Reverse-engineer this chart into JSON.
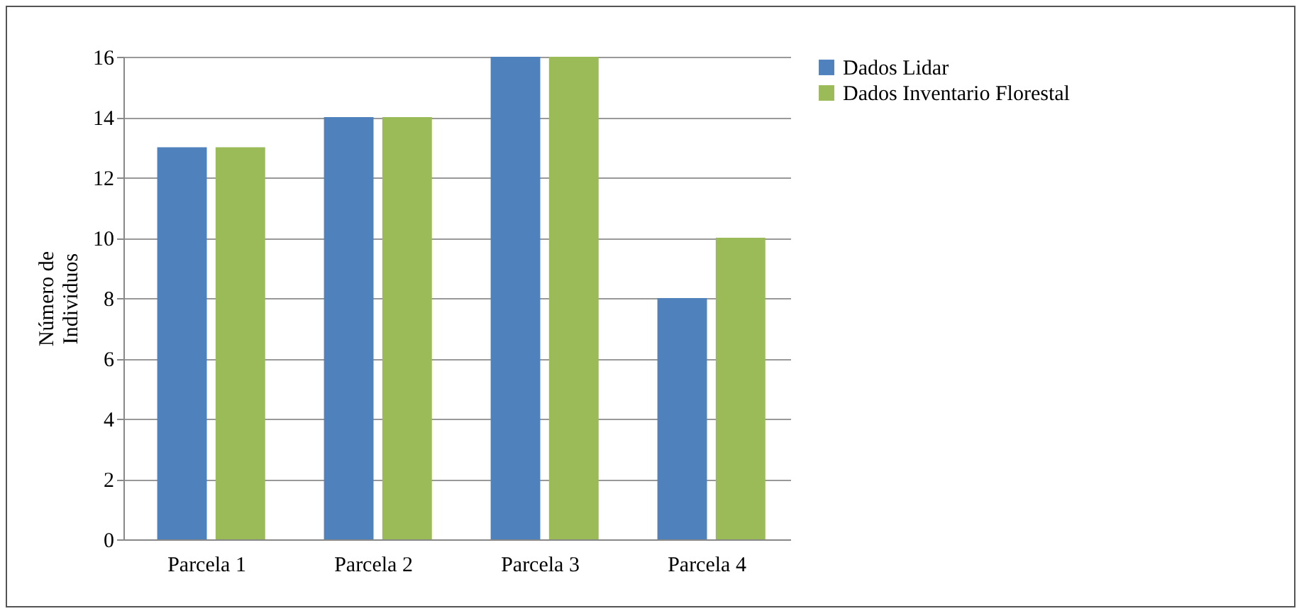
{
  "chart_data": {
    "type": "bar",
    "ylabel": "Número de Individuos",
    "categories": [
      "Parcela 1",
      "Parcela 2",
      "Parcela 3",
      "Parcela 4"
    ],
    "series": [
      {
        "name": "Dados Lidar",
        "color": "#4f81bd",
        "values": [
          13,
          14,
          16,
          8
        ]
      },
      {
        "name": "Dados Inventario Florestal",
        "color": "#9bbb59",
        "values": [
          13,
          14,
          16,
          10
        ]
      }
    ],
    "ylim": [
      0,
      16
    ],
    "yticks": [
      0,
      2,
      4,
      6,
      8,
      10,
      12,
      14,
      16
    ],
    "grid": "y",
    "legend": "right"
  }
}
